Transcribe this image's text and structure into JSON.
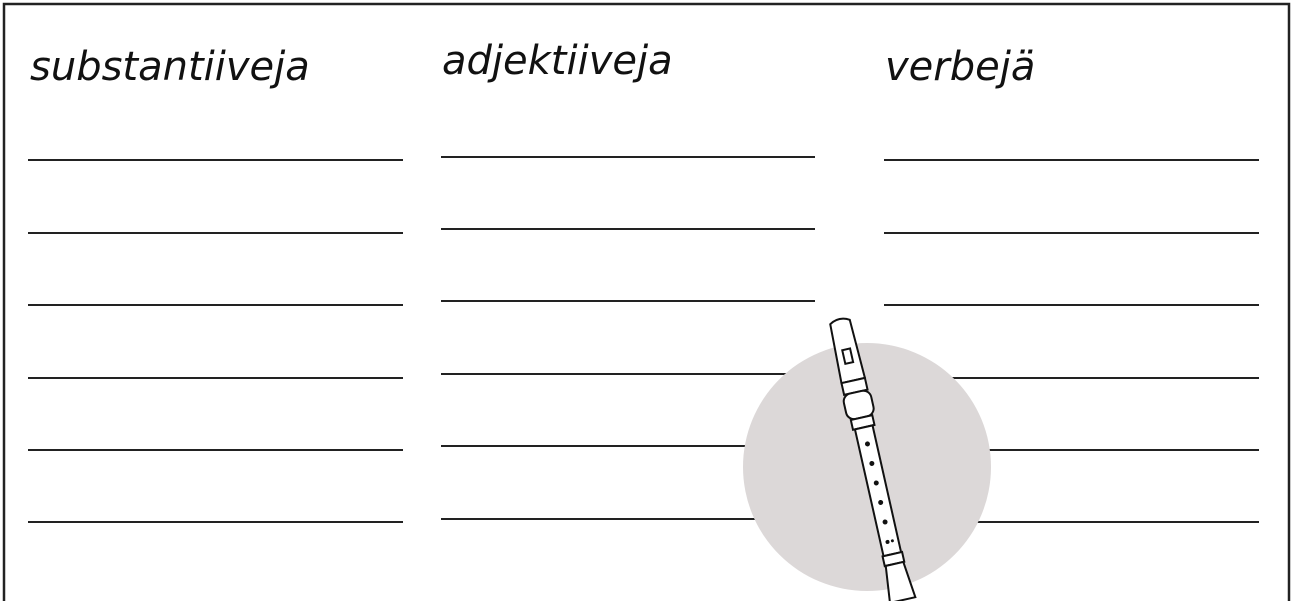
{
  "columns": [
    {
      "title": "substantiiveja"
    },
    {
      "title": "adjektiiveja"
    },
    {
      "title": "verbejä"
    }
  ]
}
